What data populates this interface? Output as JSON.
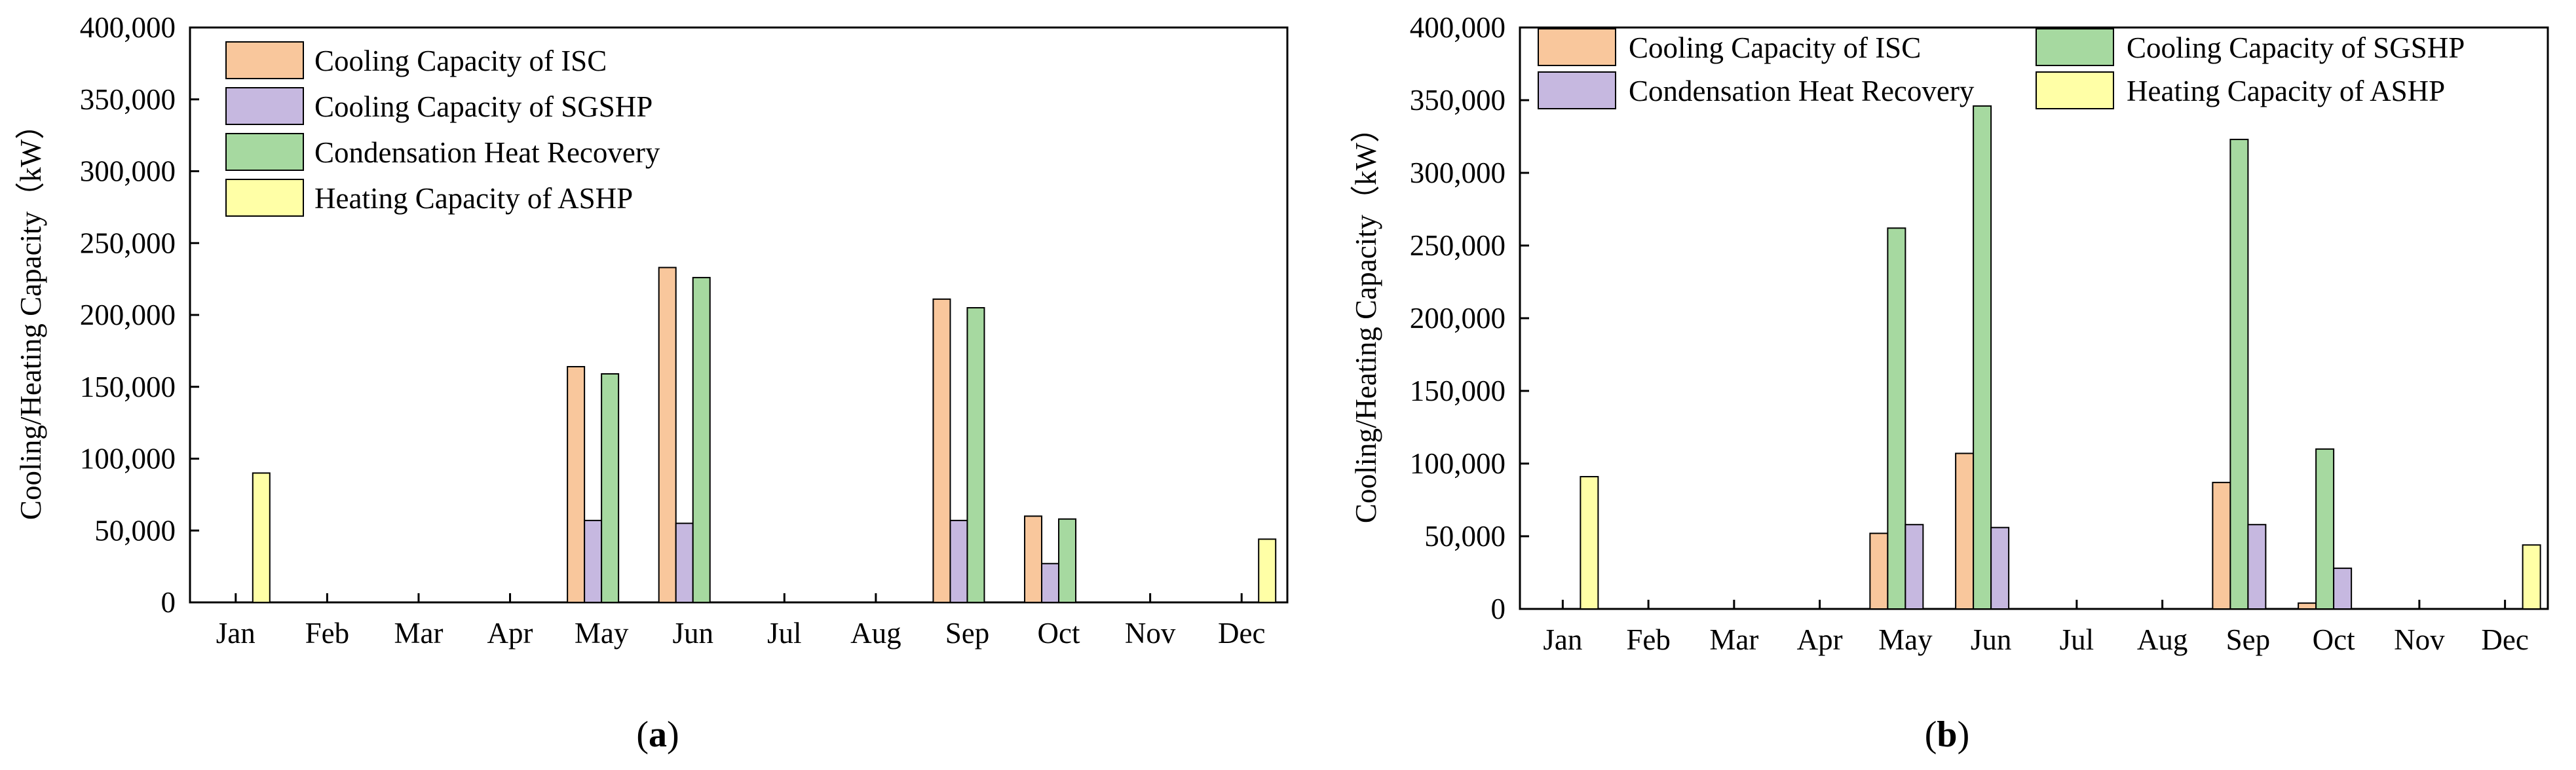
{
  "chart_data": [
    {
      "type": "bar",
      "panel_label": "a",
      "ylabel": "Cooling/Heating Capacity（kW）",
      "ylim": [
        0,
        400000
      ],
      "yticks": [
        "0",
        "50,000",
        "100,000",
        "150,000",
        "200,000",
        "250,000",
        "300,000",
        "350,000",
        "400,000"
      ],
      "categories": [
        "Jan",
        "Feb",
        "Mar",
        "Apr",
        "May",
        "Jun",
        "Jul",
        "Aug",
        "Sep",
        "Oct",
        "Nov",
        "Dec"
      ],
      "legend_position": "top-left",
      "legend_columns": 1,
      "series": [
        {
          "name": "Cooling Capacity of ISC",
          "color": "#F9C79C",
          "values": [
            0,
            0,
            0,
            0,
            164000,
            233000,
            0,
            0,
            211000,
            60000,
            0,
            0
          ]
        },
        {
          "name": "Cooling Capacity of SGSHP",
          "color": "#C6B8E0",
          "values": [
            0,
            0,
            0,
            0,
            57000,
            55000,
            0,
            0,
            57000,
            27000,
            0,
            0
          ]
        },
        {
          "name": "Condensation Heat Recovery",
          "color": "#A6D9A0",
          "values": [
            0,
            0,
            0,
            0,
            159000,
            226000,
            0,
            0,
            205000,
            58000,
            0,
            0
          ]
        },
        {
          "name": "Heating Capacity of ASHP",
          "color": "#FFFFA6",
          "values": [
            90000,
            0,
            0,
            0,
            0,
            0,
            0,
            0,
            0,
            0,
            0,
            44000
          ]
        }
      ]
    },
    {
      "type": "bar",
      "panel_label": "b",
      "ylabel": "Cooling/Heating Capacity（kW）",
      "ylim": [
        0,
        400000
      ],
      "yticks": [
        "0",
        "50,000",
        "100,000",
        "150,000",
        "200,000",
        "250,000",
        "300,000",
        "350,000",
        "400,000"
      ],
      "categories": [
        "Jan",
        "Feb",
        "Mar",
        "Apr",
        "May",
        "Jun",
        "Jul",
        "Aug",
        "Sep",
        "Oct",
        "Nov",
        "Dec"
      ],
      "legend_position": "top",
      "legend_columns": 2,
      "series": [
        {
          "name": "Cooling Capacity of ISC",
          "color": "#F9C79C",
          "values": [
            0,
            0,
            0,
            0,
            52000,
            107000,
            0,
            0,
            87000,
            4000,
            0,
            0
          ]
        },
        {
          "name": "Cooling Capacity of SGSHP",
          "color": "#A6D9A0",
          "values": [
            0,
            0,
            0,
            0,
            262000,
            346000,
            0,
            0,
            323000,
            110000,
            0,
            0
          ]
        },
        {
          "name": "Condensation Heat Recovery",
          "color": "#C6B8E0",
          "values": [
            0,
            0,
            0,
            0,
            58000,
            56000,
            0,
            0,
            58000,
            28000,
            0,
            0
          ]
        },
        {
          "name": "Heating Capacity of ASHP",
          "color": "#FFFFA6",
          "values": [
            91000,
            0,
            0,
            0,
            0,
            0,
            0,
            0,
            0,
            0,
            0,
            44000
          ]
        }
      ]
    }
  ]
}
